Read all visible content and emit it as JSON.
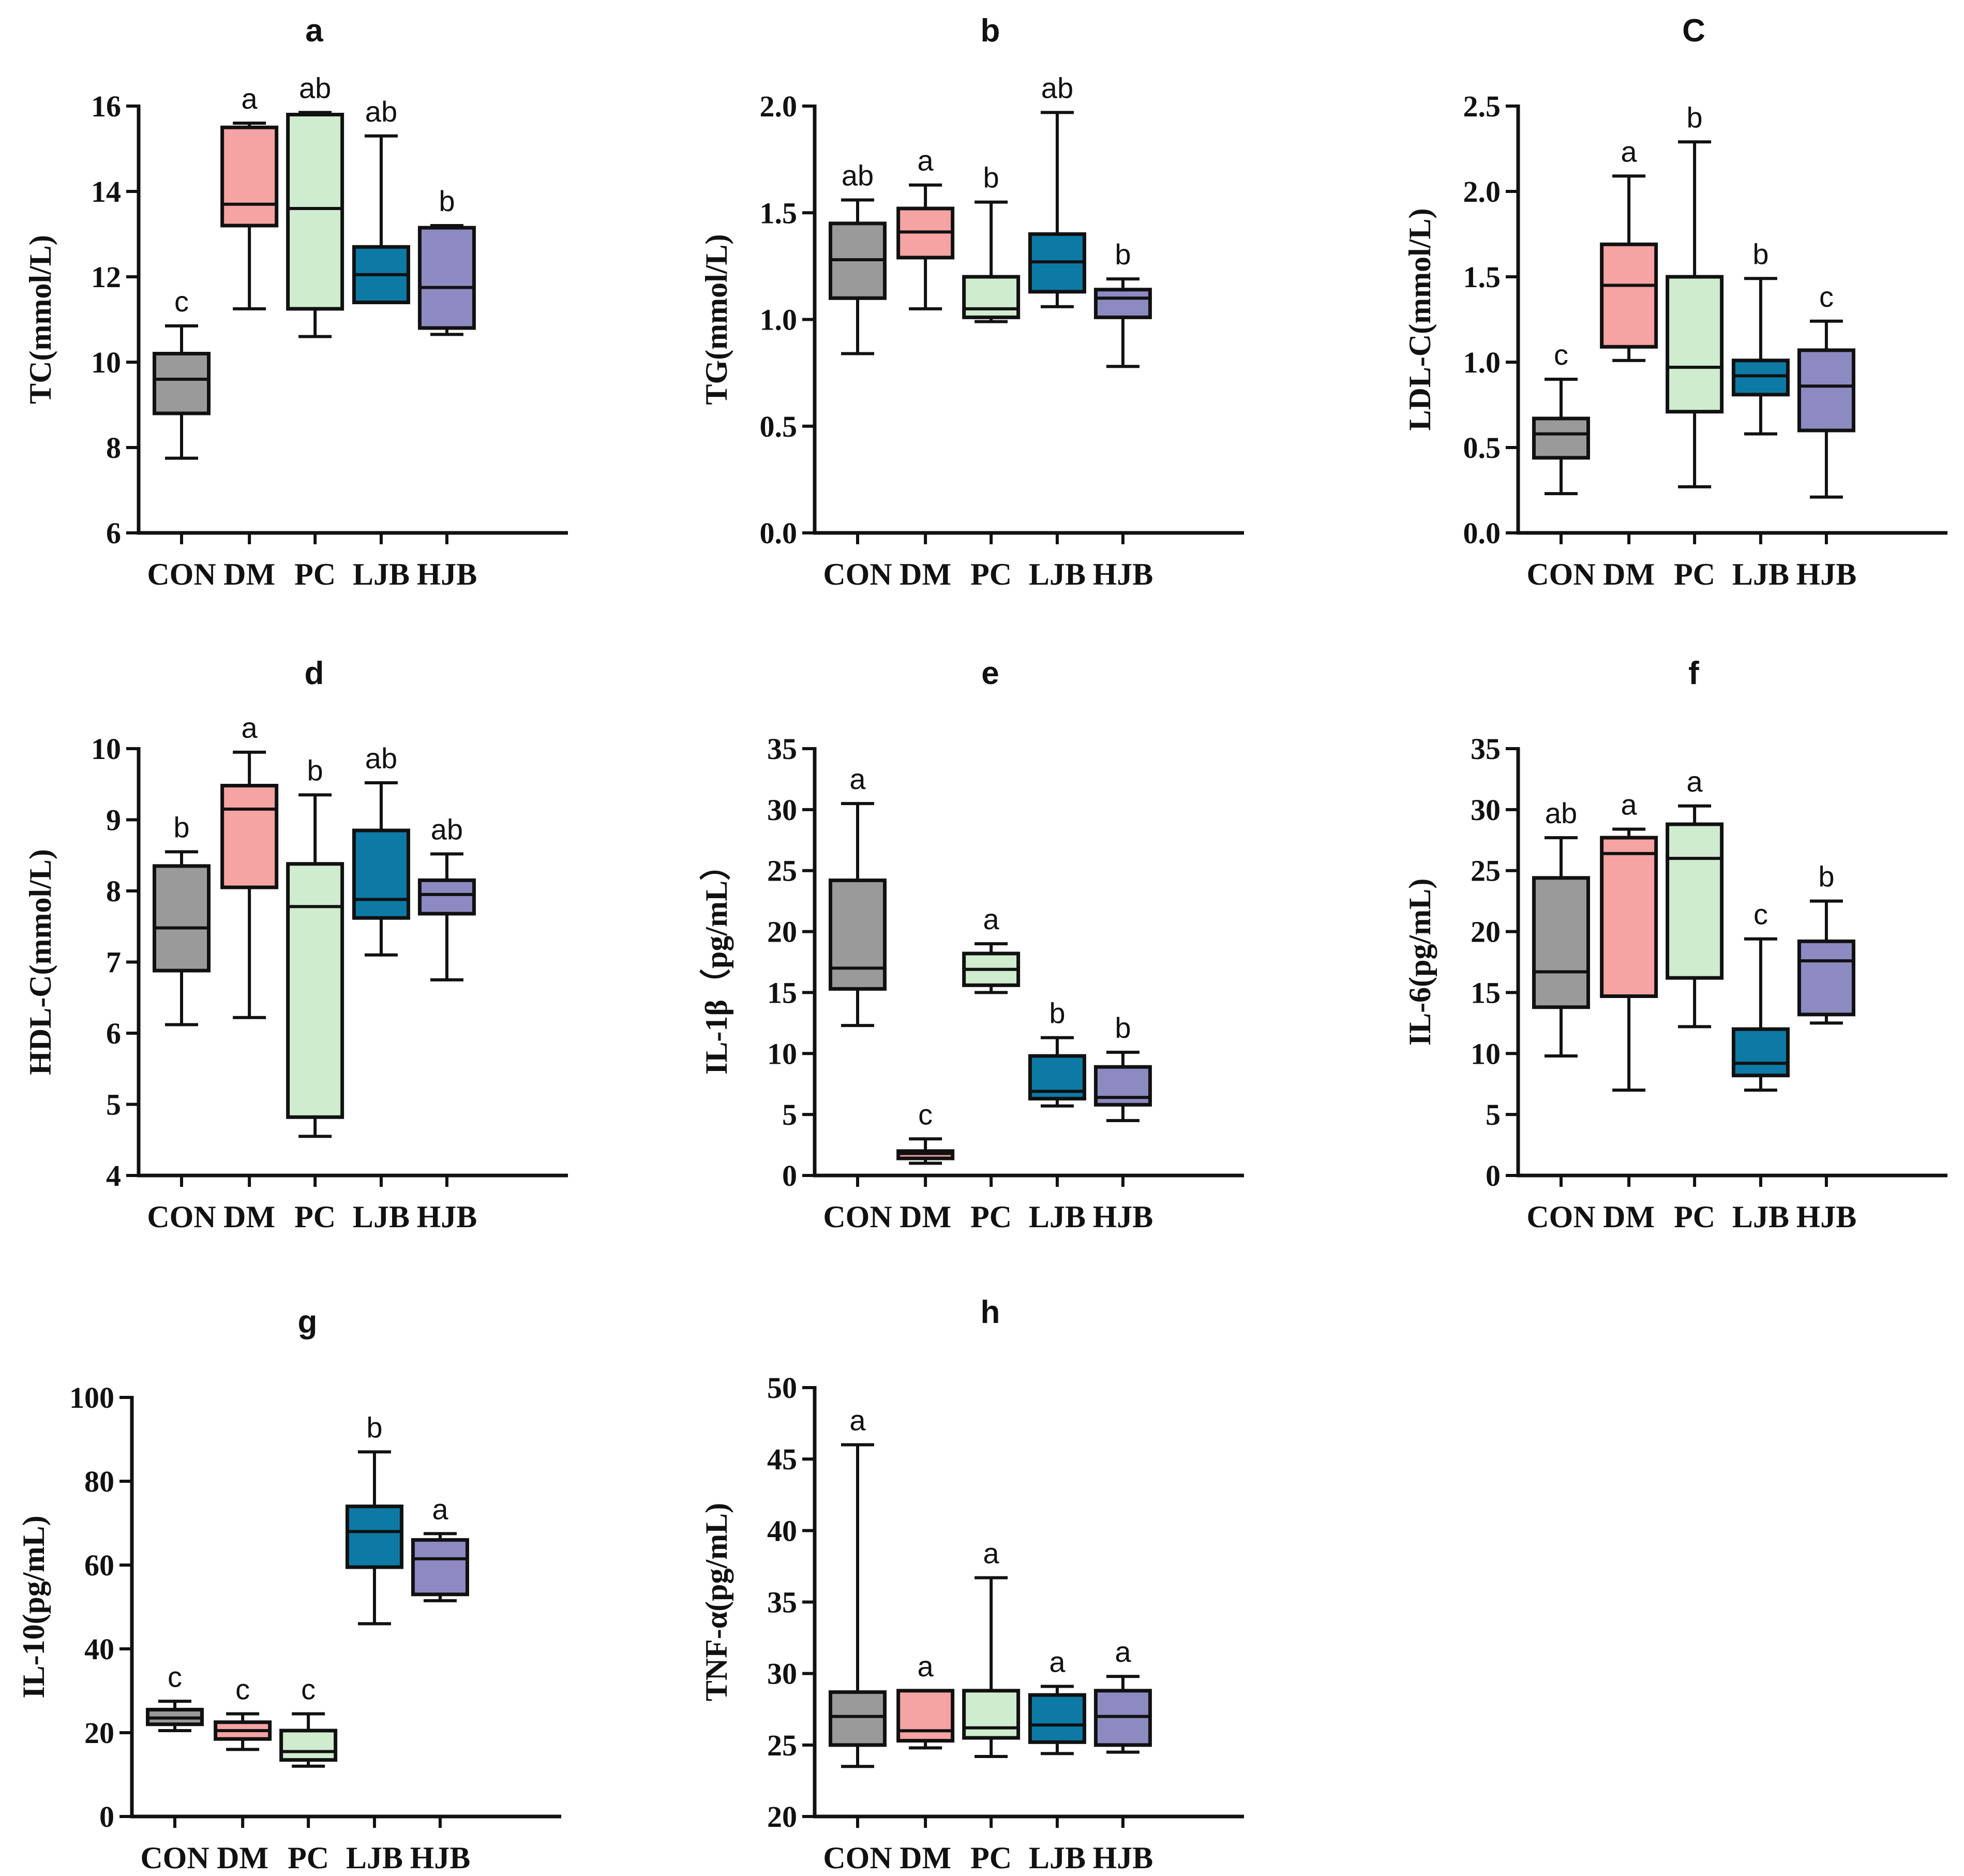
{
  "group_colors": {
    "CON": "#9a9a9a",
    "DM": "#f5a3a3",
    "PC": "#cfeccf",
    "LJB": "#0d7aa6",
    "HJB": "#8d8ac2"
  },
  "chart_data": [
    {
      "type": "box",
      "title": "a",
      "ylabel": "TC(mmol/L)",
      "ylim": [
        6,
        16
      ],
      "yticks": [
        6,
        8,
        10,
        12,
        14,
        16
      ],
      "ytick_labels": [
        "6",
        "8",
        "10",
        "12",
        "14",
        "16"
      ],
      "categories": [
        "CON",
        "DM",
        "PC",
        "LJB",
        "HJB"
      ],
      "boxes": [
        {
          "min": 7.75,
          "q1": 8.8,
          "median": 9.6,
          "q3": 10.2,
          "max": 10.85,
          "sig": "c"
        },
        {
          "min": 11.25,
          "q1": 13.2,
          "median": 13.7,
          "q3": 15.5,
          "max": 15.6,
          "sig": "a"
        },
        {
          "min": 10.6,
          "q1": 11.25,
          "median": 13.6,
          "q3": 15.8,
          "max": 15.85,
          "sig": "ab"
        },
        {
          "min": 11.4,
          "q1": 11.4,
          "median": 12.05,
          "q3": 12.7,
          "max": 15.3,
          "sig": "ab"
        },
        {
          "min": 10.65,
          "q1": 10.8,
          "median": 11.75,
          "q3": 13.15,
          "max": 13.2,
          "sig": "b"
        }
      ]
    },
    {
      "type": "box",
      "title": "b",
      "ylabel": "TG(mmol/L)",
      "ylim": [
        0,
        2
      ],
      "yticks": [
        0,
        0.5,
        1,
        1.5,
        2
      ],
      "ytick_labels": [
        "0.0",
        "0.5",
        "1.0",
        "1.5",
        "2.0"
      ],
      "categories": [
        "CON",
        "DM",
        "PC",
        "LJB",
        "HJB"
      ],
      "boxes": [
        {
          "min": 0.84,
          "q1": 1.1,
          "median": 1.28,
          "q3": 1.45,
          "max": 1.56,
          "sig": "ab"
        },
        {
          "min": 1.05,
          "q1": 1.29,
          "median": 1.41,
          "q3": 1.52,
          "max": 1.63,
          "sig": "a"
        },
        {
          "min": 0.99,
          "q1": 1.01,
          "median": 1.05,
          "q3": 1.2,
          "max": 1.55,
          "sig": "b"
        },
        {
          "min": 1.06,
          "q1": 1.13,
          "median": 1.27,
          "q3": 1.4,
          "max": 1.97,
          "sig": "ab"
        },
        {
          "min": 0.78,
          "q1": 1.01,
          "median": 1.1,
          "q3": 1.14,
          "max": 1.19,
          "sig": "b"
        }
      ]
    },
    {
      "type": "box",
      "title": "C",
      "ylabel": "LDL-C(mmol/L)",
      "ylim": [
        0,
        2.5
      ],
      "yticks": [
        0,
        0.5,
        1,
        1.5,
        2,
        2.5
      ],
      "ytick_labels": [
        "0.0",
        "0.5",
        "1.0",
        "1.5",
        "2.0",
        "2.5"
      ],
      "categories": [
        "CON",
        "DM",
        "PC",
        "LJB",
        "HJB"
      ],
      "boxes": [
        {
          "min": 0.23,
          "q1": 0.44,
          "median": 0.58,
          "q3": 0.67,
          "max": 0.9,
          "sig": "c"
        },
        {
          "min": 1.01,
          "q1": 1.09,
          "median": 1.45,
          "q3": 1.69,
          "max": 2.09,
          "sig": "a"
        },
        {
          "min": 0.27,
          "q1": 0.71,
          "median": 0.97,
          "q3": 1.5,
          "max": 2.29,
          "sig": "b"
        },
        {
          "min": 0.58,
          "q1": 0.81,
          "median": 0.92,
          "q3": 1.01,
          "max": 1.49,
          "sig": "b"
        },
        {
          "min": 0.21,
          "q1": 0.6,
          "median": 0.86,
          "q3": 1.07,
          "max": 1.24,
          "sig": "c"
        }
      ]
    },
    {
      "type": "box",
      "title": "d",
      "ylabel": "HDL-C(mmol/L)",
      "ylim": [
        4,
        10
      ],
      "yticks": [
        4,
        5,
        6,
        7,
        8,
        9,
        10
      ],
      "ytick_labels": [
        "4",
        "5",
        "6",
        "7",
        "8",
        "9",
        "10"
      ],
      "categories": [
        "CON",
        "DM",
        "PC",
        "LJB",
        "HJB"
      ],
      "boxes": [
        {
          "min": 6.12,
          "q1": 6.88,
          "median": 7.48,
          "q3": 8.35,
          "max": 8.55,
          "sig": "b"
        },
        {
          "min": 6.22,
          "q1": 8.05,
          "median": 9.15,
          "q3": 9.48,
          "max": 9.95,
          "sig": "a"
        },
        {
          "min": 4.55,
          "q1": 4.82,
          "median": 7.78,
          "q3": 8.38,
          "max": 9.35,
          "sig": "b"
        },
        {
          "min": 7.1,
          "q1": 7.62,
          "median": 7.88,
          "q3": 8.85,
          "max": 9.52,
          "sig": "ab"
        },
        {
          "min": 6.75,
          "q1": 7.68,
          "median": 7.95,
          "q3": 8.15,
          "max": 8.52,
          "sig": "ab"
        }
      ]
    },
    {
      "type": "box",
      "title": "e",
      "ylabel": "IL-1β（pg/mL）",
      "ylim": [
        0,
        35
      ],
      "yticks": [
        0,
        5,
        10,
        15,
        20,
        25,
        30,
        35
      ],
      "ytick_labels": [
        "0",
        "5",
        "10",
        "15",
        "20",
        "25",
        "30",
        "35"
      ],
      "categories": [
        "CON",
        "DM",
        "PC",
        "LJB",
        "HJB"
      ],
      "boxes": [
        {
          "min": 12.3,
          "q1": 15.3,
          "median": 17.0,
          "q3": 24.2,
          "max": 30.5,
          "sig": "a"
        },
        {
          "min": 1.0,
          "q1": 1.4,
          "median": 1.8,
          "q3": 2.0,
          "max": 3.0,
          "sig": "c"
        },
        {
          "min": 15.0,
          "q1": 15.6,
          "median": 16.9,
          "q3": 18.2,
          "max": 19.0,
          "sig": "a"
        },
        {
          "min": 5.7,
          "q1": 6.3,
          "median": 6.9,
          "q3": 9.8,
          "max": 11.3,
          "sig": "b"
        },
        {
          "min": 4.5,
          "q1": 5.8,
          "median": 6.4,
          "q3": 8.9,
          "max": 10.1,
          "sig": "b"
        }
      ]
    },
    {
      "type": "box",
      "title": "f",
      "ylabel": "IL-6(pg/mL)",
      "ylim": [
        0,
        35
      ],
      "yticks": [
        0,
        5,
        10,
        15,
        20,
        25,
        30,
        35
      ],
      "ytick_labels": [
        "0",
        "5",
        "10",
        "15",
        "20",
        "25",
        "30",
        "35"
      ],
      "categories": [
        "CON",
        "DM",
        "PC",
        "LJB",
        "HJB"
      ],
      "boxes": [
        {
          "min": 9.8,
          "q1": 13.8,
          "median": 16.7,
          "q3": 24.4,
          "max": 27.7,
          "sig": "ab"
        },
        {
          "min": 7.0,
          "q1": 14.7,
          "median": 26.4,
          "q3": 27.7,
          "max": 28.4,
          "sig": "a"
        },
        {
          "min": 12.2,
          "q1": 16.2,
          "median": 26.0,
          "q3": 28.8,
          "max": 30.3,
          "sig": "a"
        },
        {
          "min": 7.0,
          "q1": 8.2,
          "median": 9.2,
          "q3": 12.0,
          "max": 19.4,
          "sig": "c"
        },
        {
          "min": 12.5,
          "q1": 13.2,
          "median": 17.6,
          "q3": 19.2,
          "max": 22.5,
          "sig": "b"
        }
      ]
    },
    {
      "type": "box",
      "title": "g",
      "ylabel": "IL-10(pg/mL)",
      "ylim": [
        0,
        100
      ],
      "yticks": [
        0,
        20,
        40,
        60,
        80,
        100
      ],
      "ytick_labels": [
        "0",
        "20",
        "40",
        "60",
        "80",
        "100"
      ],
      "categories": [
        "CON",
        "DM",
        "PC",
        "LJB",
        "HJB"
      ],
      "boxes": [
        {
          "min": 20.5,
          "q1": 22.0,
          "median": 23.5,
          "q3": 25.5,
          "max": 27.5,
          "sig": "c"
        },
        {
          "min": 16.0,
          "q1": 18.5,
          "median": 20.5,
          "q3": 22.5,
          "max": 24.5,
          "sig": "c"
        },
        {
          "min": 12.0,
          "q1": 13.5,
          "median": 15.5,
          "q3": 20.5,
          "max": 24.5,
          "sig": "c"
        },
        {
          "min": 46.0,
          "q1": 59.5,
          "median": 68.0,
          "q3": 74.0,
          "max": 87.0,
          "sig": "b"
        },
        {
          "min": 51.5,
          "q1": 53.0,
          "median": 61.5,
          "q3": 66.0,
          "max": 67.5,
          "sig": "a"
        }
      ]
    },
    {
      "type": "box",
      "title": "h",
      "ylabel": "TNF-α(pg/mL)",
      "ylim": [
        20,
        50
      ],
      "yticks": [
        20,
        25,
        30,
        35,
        40,
        45,
        50
      ],
      "ytick_labels": [
        "20",
        "25",
        "30",
        "35",
        "40",
        "45",
        "50"
      ],
      "categories": [
        "CON",
        "DM",
        "PC",
        "LJB",
        "HJB"
      ],
      "boxes": [
        {
          "min": 23.5,
          "q1": 25.0,
          "median": 27.0,
          "q3": 28.7,
          "max": 46.0,
          "sig": "a"
        },
        {
          "min": 24.8,
          "q1": 25.3,
          "median": 26.0,
          "q3": 28.8,
          "max": 28.8,
          "sig": "a"
        },
        {
          "min": 24.2,
          "q1": 25.5,
          "median": 26.2,
          "q3": 28.8,
          "max": 36.7,
          "sig": "a"
        },
        {
          "min": 24.4,
          "q1": 25.2,
          "median": 26.4,
          "q3": 28.5,
          "max": 29.1,
          "sig": "a"
        },
        {
          "min": 24.5,
          "q1": 25.0,
          "median": 27.0,
          "q3": 28.8,
          "max": 29.8,
          "sig": "a"
        }
      ]
    }
  ]
}
